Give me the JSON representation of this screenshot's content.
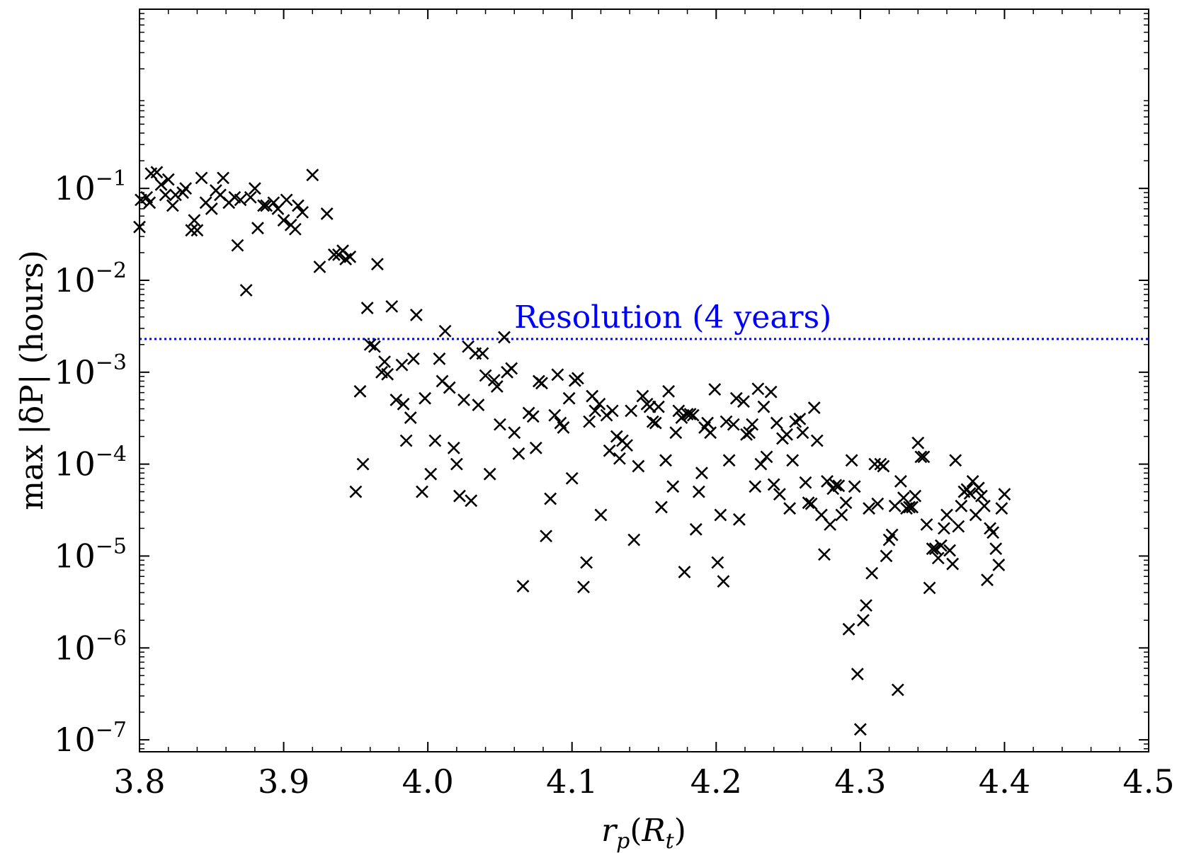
{
  "chart_data": {
    "type": "scatter",
    "xlabel": "r_p(R_t)",
    "xlabel_parts": {
      "base": "r",
      "base_sub": "p",
      "open": "(",
      "arg": "R",
      "arg_sub": "t",
      "close": ")"
    },
    "ylabel": "max |δP| (hours)",
    "xlim": [
      3.8,
      4.5
    ],
    "ylim_log10": [
      -7.13,
      0.95
    ],
    "x_scale": "linear",
    "y_scale": "log",
    "x_ticks": [
      3.8,
      3.9,
      4.0,
      4.1,
      4.2,
      4.3,
      4.4,
      4.5
    ],
    "x_tick_labels": [
      "3.8",
      "3.9",
      "4.0",
      "4.1",
      "4.2",
      "4.3",
      "4.4",
      "4.5"
    ],
    "y_ticks_log10": [
      -7,
      -6,
      -5,
      -4,
      -3,
      -2,
      -1
    ],
    "y_tick_labels": [
      "10−7",
      "10−6",
      "10−5",
      "10−4",
      "10−3",
      "10−2",
      "10−1"
    ],
    "marker": "x",
    "marker_color": "#000000",
    "resolution_line": {
      "label": "Resolution (4 years)",
      "y": 0.0023,
      "color": "#0000ff",
      "style": "dotted"
    },
    "series": [
      {
        "name": "max |δP|",
        "points": [
          [
            3.8,
            0.038
          ],
          [
            3.801,
            0.075
          ],
          [
            3.805,
            0.08
          ],
          [
            3.807,
            0.07
          ],
          [
            3.808,
            0.145
          ],
          [
            3.812,
            0.15
          ],
          [
            3.815,
            0.11
          ],
          [
            3.818,
            0.085
          ],
          [
            3.82,
            0.125
          ],
          [
            3.823,
            0.065
          ],
          [
            3.825,
            0.085
          ],
          [
            3.83,
            0.09
          ],
          [
            3.832,
            0.1
          ],
          [
            3.836,
            0.035
          ],
          [
            3.838,
            0.045
          ],
          [
            3.84,
            0.035
          ],
          [
            3.843,
            0.13
          ],
          [
            3.846,
            0.07
          ],
          [
            3.85,
            0.06
          ],
          [
            3.853,
            0.095
          ],
          [
            3.856,
            0.085
          ],
          [
            3.858,
            0.13
          ],
          [
            3.862,
            0.07
          ],
          [
            3.866,
            0.08
          ],
          [
            3.868,
            0.024
          ],
          [
            3.87,
            0.075
          ],
          [
            3.874,
            0.0078
          ],
          [
            3.877,
            0.08
          ],
          [
            3.88,
            0.1
          ],
          [
            3.882,
            0.037
          ],
          [
            3.886,
            0.065
          ],
          [
            3.888,
            0.065
          ],
          [
            3.893,
            0.07
          ],
          [
            3.896,
            0.06
          ],
          [
            3.9,
            0.045
          ],
          [
            3.902,
            0.075
          ],
          [
            3.905,
            0.04
          ],
          [
            3.908,
            0.036
          ],
          [
            3.91,
            0.065
          ],
          [
            3.913,
            0.055
          ],
          [
            3.92,
            0.14
          ],
          [
            3.925,
            0.014
          ],
          [
            3.93,
            0.053
          ],
          [
            3.935,
            0.019
          ],
          [
            3.938,
            0.019
          ],
          [
            3.941,
            0.021
          ],
          [
            3.943,
            0.017
          ],
          [
            3.946,
            0.018
          ],
          [
            3.95,
            5e-05
          ],
          [
            3.953,
            0.00062
          ],
          [
            3.955,
            0.0001
          ],
          [
            3.958,
            0.005
          ],
          [
            3.96,
            0.002
          ],
          [
            3.963,
            0.0019
          ],
          [
            3.965,
            0.015
          ],
          [
            3.968,
            0.001
          ],
          [
            3.97,
            0.0013
          ],
          [
            3.972,
            0.00095
          ],
          [
            3.975,
            0.0052
          ],
          [
            3.978,
            0.0005
          ],
          [
            3.982,
            0.0012
          ],
          [
            3.983,
            0.00045
          ],
          [
            3.985,
            0.00018
          ],
          [
            3.988,
            0.00032
          ],
          [
            3.99,
            0.0014
          ],
          [
            3.992,
            0.0042
          ],
          [
            3.996,
            5e-05
          ],
          [
            3.998,
            0.00052
          ],
          [
            4.002,
            7.8e-05
          ],
          [
            4.005,
            0.00018
          ],
          [
            4.008,
            0.0014
          ],
          [
            4.01,
            0.0008
          ],
          [
            4.012,
            0.0028
          ],
          [
            4.015,
            0.00068
          ],
          [
            4.018,
            0.00015
          ],
          [
            4.02,
            0.0001
          ],
          [
            4.022,
            4.5e-05
          ],
          [
            4.025,
            0.0005
          ],
          [
            4.028,
            0.0019
          ],
          [
            4.03,
            4e-05
          ],
          [
            4.033,
            0.0016
          ],
          [
            4.035,
            0.00044
          ],
          [
            4.038,
            0.0016
          ],
          [
            4.04,
            0.00092
          ],
          [
            4.043,
            7.8e-05
          ],
          [
            4.046,
            0.00082
          ],
          [
            4.048,
            0.0007
          ],
          [
            4.05,
            0.00027
          ],
          [
            4.053,
            0.0024
          ],
          [
            4.055,
            0.001
          ],
          [
            4.058,
            0.0011
          ],
          [
            4.06,
            0.00022
          ],
          [
            4.063,
            0.00013
          ],
          [
            4.066,
            4.7e-06
          ],
          [
            4.07,
            0.00036
          ],
          [
            4.073,
            0.00033
          ],
          [
            4.075,
            0.00015
          ],
          [
            4.077,
            0.0008
          ],
          [
            4.079,
            0.00076
          ],
          [
            4.082,
            1.65e-05
          ],
          [
            4.085,
            4.2e-05
          ],
          [
            4.088,
            0.00034
          ],
          [
            4.09,
            0.00094
          ],
          [
            4.092,
            0.00028
          ],
          [
            4.094,
            0.00025
          ],
          [
            4.098,
            0.00052
          ],
          [
            4.1,
            7e-05
          ],
          [
            4.102,
            0.00081
          ],
          [
            4.104,
            0.00086
          ],
          [
            4.108,
            4.6e-06
          ],
          [
            4.11,
            8.5e-06
          ],
          [
            4.112,
            0.00029
          ],
          [
            4.114,
            0.00055
          ],
          [
            4.116,
            0.00038
          ],
          [
            4.119,
            0.00045
          ],
          [
            4.12,
            2.8e-05
          ],
          [
            4.124,
            0.00034
          ],
          [
            4.126,
            0.00014
          ],
          [
            4.128,
            0.00038
          ],
          [
            4.131,
            0.0002
          ],
          [
            4.133,
            0.000115
          ],
          [
            4.135,
            0.00018
          ],
          [
            4.138,
            0.00016
          ],
          [
            4.141,
            0.00038
          ],
          [
            4.143,
            1.5e-05
          ],
          [
            4.146,
            9.5e-05
          ],
          [
            4.149,
            0.00055
          ],
          [
            4.152,
            0.00045
          ],
          [
            4.154,
            0.00042
          ],
          [
            4.156,
            0.00029
          ],
          [
            4.158,
            0.00028
          ],
          [
            4.16,
            0.00042
          ],
          [
            4.162,
            3.4e-05
          ],
          [
            4.165,
            0.00011
          ],
          [
            4.167,
            0.00062
          ],
          [
            4.17,
            5.7e-05
          ],
          [
            4.172,
            0.00022
          ],
          [
            4.174,
            0.00038
          ],
          [
            4.176,
            0.00032
          ],
          [
            4.178,
            6.7e-06
          ],
          [
            4.18,
            0.00035
          ],
          [
            4.182,
            0.00035
          ],
          [
            4.184,
            0.00034
          ],
          [
            4.186,
            1.95e-05
          ],
          [
            4.188,
            5e-05
          ],
          [
            4.19,
            8e-05
          ],
          [
            4.192,
            0.00025
          ],
          [
            4.194,
            0.00028
          ],
          [
            4.196,
            0.00022
          ],
          [
            4.199,
            0.00065
          ],
          [
            4.201,
            8.5e-06
          ],
          [
            4.203,
            2.8e-05
          ],
          [
            4.205,
            5.3e-06
          ],
          [
            4.207,
            0.00029
          ],
          [
            4.209,
            0.00011
          ],
          [
            4.212,
            0.00027
          ],
          [
            4.214,
            0.00052
          ],
          [
            4.216,
            2.5e-05
          ],
          [
            4.219,
            0.00048
          ],
          [
            4.221,
            0.00021
          ],
          [
            4.223,
            0.00022
          ],
          [
            4.225,
            0.00027
          ],
          [
            4.227,
            5.7e-05
          ],
          [
            4.229,
            0.00066
          ],
          [
            4.231,
            0.0001
          ],
          [
            4.233,
            0.00042
          ],
          [
            4.235,
            0.00012
          ],
          [
            4.238,
            0.00061
          ],
          [
            4.24,
            6e-05
          ],
          [
            4.242,
            0.00028
          ],
          [
            4.244,
            4.7e-05
          ],
          [
            4.246,
            0.00019
          ],
          [
            4.249,
            0.00021
          ],
          [
            4.251,
            3.3e-05
          ],
          [
            4.253,
            0.00011
          ],
          [
            4.255,
            0.00029
          ],
          [
            4.258,
            0.00031
          ],
          [
            4.26,
            0.00022
          ],
          [
            4.262,
            6.3e-05
          ],
          [
            4.264,
            3.8e-05
          ],
          [
            4.266,
            3.7e-05
          ],
          [
            4.268,
            0.00041
          ],
          [
            4.27,
            0.00018
          ],
          [
            4.273,
            2.8e-05
          ],
          [
            4.275,
            1.04e-05
          ],
          [
            4.277,
            6.5e-05
          ],
          [
            4.279,
            2.2e-05
          ],
          [
            4.281,
            5.4e-05
          ],
          [
            4.283,
            5.9e-05
          ],
          [
            4.285,
            5.8e-05
          ],
          [
            4.287,
            2.8e-05
          ],
          [
            4.29,
            3.8e-05
          ],
          [
            4.292,
            1.6e-06
          ],
          [
            4.294,
            0.00011
          ],
          [
            4.296,
            5.7e-05
          ],
          [
            4.298,
            5.2e-07
          ],
          [
            4.3,
            1.3e-07
          ],
          [
            4.302,
            2e-06
          ],
          [
            4.304,
            2.9e-06
          ],
          [
            4.306,
            3.3e-05
          ],
          [
            4.308,
            6.5e-06
          ],
          [
            4.31,
            0.0001
          ],
          [
            4.312,
            3.7e-05
          ],
          [
            4.314,
            0.0001
          ],
          [
            4.316,
            9.5e-05
          ],
          [
            4.318,
            1e-05
          ],
          [
            4.32,
            1.5e-05
          ],
          [
            4.322,
            1.7e-05
          ],
          [
            4.324,
            3.5e-05
          ],
          [
            4.326,
            3.5e-07
          ],
          [
            4.328,
            6.5e-05
          ],
          [
            4.33,
            4.3e-05
          ],
          [
            4.332,
            3.3e-05
          ],
          [
            4.334,
            3.4e-05
          ],
          [
            4.336,
            3.4e-05
          ],
          [
            4.338,
            4.5e-05
          ],
          [
            4.34,
            0.00017
          ],
          [
            4.342,
            0.00012
          ],
          [
            4.344,
            0.00012
          ],
          [
            4.346,
            2.2e-05
          ],
          [
            4.348,
            4.5e-06
          ],
          [
            4.35,
            1.2e-05
          ],
          [
            4.352,
            1.2e-05
          ],
          [
            4.354,
            9.5e-06
          ],
          [
            4.356,
            1.3e-05
          ],
          [
            4.358,
            2e-05
          ],
          [
            4.36,
            2.8e-05
          ],
          [
            4.362,
            1.15e-05
          ],
          [
            4.364,
            8.2e-06
          ],
          [
            4.366,
            0.00011
          ],
          [
            4.368,
            2.1e-05
          ],
          [
            4.37,
            3.5e-05
          ],
          [
            4.372,
            5e-05
          ],
          [
            4.374,
            5.3e-05
          ],
          [
            4.376,
            4.8e-05
          ],
          [
            4.378,
            6.5e-05
          ],
          [
            4.38,
            2.8e-05
          ],
          [
            4.382,
            5.5e-05
          ],
          [
            4.384,
            4.5e-05
          ],
          [
            4.386,
            3.5e-05
          ],
          [
            4.388,
            5.5e-06
          ],
          [
            4.39,
            2e-05
          ],
          [
            4.392,
            1.8e-05
          ],
          [
            4.394,
            1.2e-05
          ],
          [
            4.396,
            8e-06
          ],
          [
            4.398,
            3.3e-05
          ],
          [
            4.4,
            4.7e-05
          ]
        ]
      }
    ]
  }
}
